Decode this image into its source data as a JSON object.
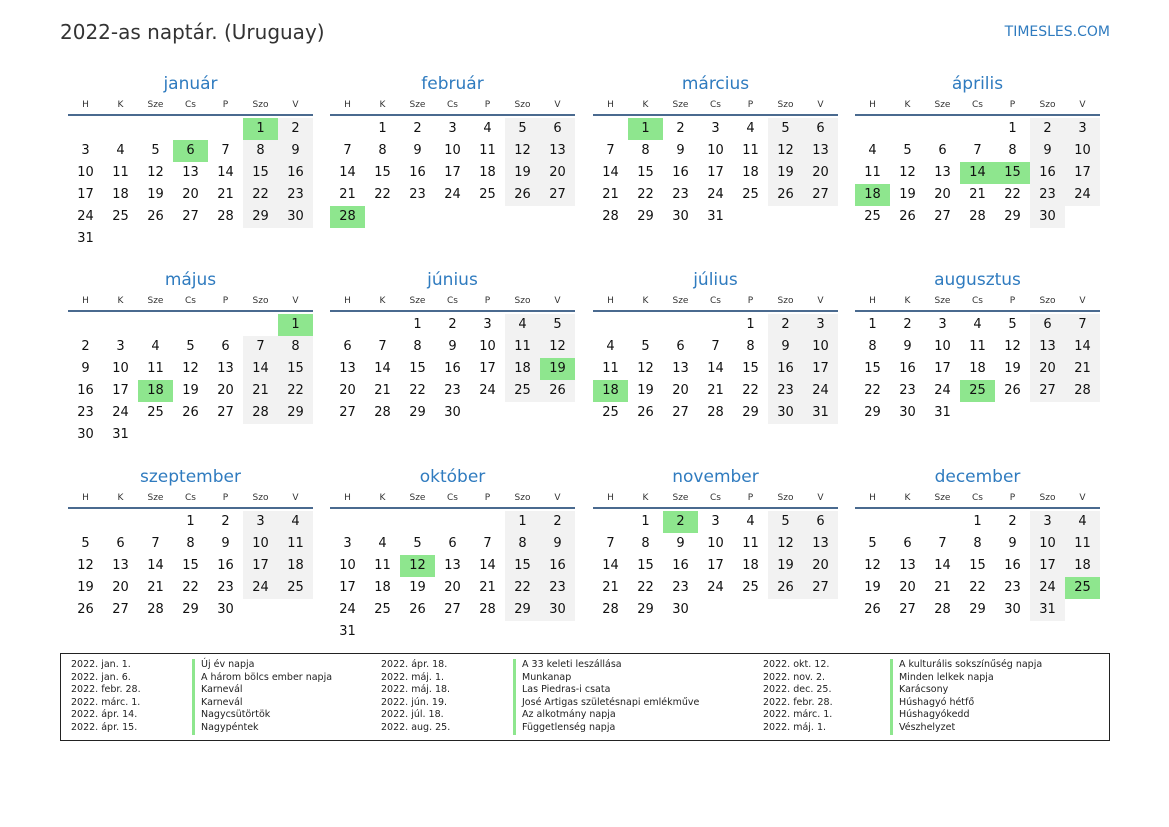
{
  "title": "2022-as naptár. (Uruguay)",
  "brand": "TIMESLES.COM",
  "weekdays": [
    "H",
    "K",
    "Sze",
    "Cs",
    "P",
    "Szo",
    "V"
  ],
  "colors": {
    "accent": "#2f7bbf",
    "holiday": "#8ee68e",
    "weekend": "#f2f2f2"
  },
  "months": [
    {
      "name": "január",
      "start": 5,
      "days": 31,
      "holidays": [
        1,
        6
      ]
    },
    {
      "name": "február",
      "start": 1,
      "days": 28,
      "holidays": [
        28
      ]
    },
    {
      "name": "március",
      "start": 1,
      "days": 31,
      "holidays": [
        1
      ]
    },
    {
      "name": "április",
      "start": 4,
      "days": 30,
      "holidays": [
        14,
        15,
        18
      ]
    },
    {
      "name": "május",
      "start": 6,
      "days": 31,
      "holidays": [
        1,
        18
      ]
    },
    {
      "name": "június",
      "start": 2,
      "days": 30,
      "holidays": [
        19
      ]
    },
    {
      "name": "július",
      "start": 4,
      "days": 31,
      "holidays": [
        18
      ]
    },
    {
      "name": "augusztus",
      "start": 0,
      "days": 31,
      "holidays": [
        25
      ]
    },
    {
      "name": "szeptember",
      "start": 3,
      "days": 30,
      "holidays": []
    },
    {
      "name": "október",
      "start": 5,
      "days": 31,
      "holidays": [
        12
      ]
    },
    {
      "name": "november",
      "start": 1,
      "days": 30,
      "holidays": [
        2
      ]
    },
    {
      "name": "december",
      "start": 3,
      "days": 31,
      "holidays": [
        25
      ]
    }
  ],
  "legend": [
    [
      {
        "date": "2022. jan. 1.",
        "name": "Új év napja"
      },
      {
        "date": "2022. jan. 6.",
        "name": "A három bölcs ember napja"
      },
      {
        "date": "2022. febr. 28.",
        "name": "Karnevál"
      },
      {
        "date": "2022. márc. 1.",
        "name": "Karnevál"
      },
      {
        "date": "2022. ápr. 14.",
        "name": "Nagycsütörtök"
      },
      {
        "date": "2022. ápr. 15.",
        "name": "Nagypéntek"
      }
    ],
    [
      {
        "date": "2022. ápr. 18.",
        "name": "A 33 keleti leszállása"
      },
      {
        "date": "2022. máj. 1.",
        "name": "Munkanap"
      },
      {
        "date": "2022. máj. 18.",
        "name": "Las Piedras-i csata"
      },
      {
        "date": "2022. jún. 19.",
        "name": "José Artigas születésnapi emlékműve"
      },
      {
        "date": "2022. júl. 18.",
        "name": "Az alkotmány napja"
      },
      {
        "date": "2022. aug. 25.",
        "name": "Függetlenség napja"
      }
    ],
    [
      {
        "date": "2022. okt. 12.",
        "name": "A kulturális sokszínűség napja"
      },
      {
        "date": "2022. nov. 2.",
        "name": "Minden lelkek napja"
      },
      {
        "date": "2022. dec. 25.",
        "name": "Karácsony"
      },
      {
        "date": "2022. febr. 28.",
        "name": "Húshagyó hétfő"
      },
      {
        "date": "2022. márc. 1.",
        "name": "Húshagyókedd"
      },
      {
        "date": "2022. máj. 1.",
        "name": "Vészhelyzet"
      }
    ]
  ]
}
